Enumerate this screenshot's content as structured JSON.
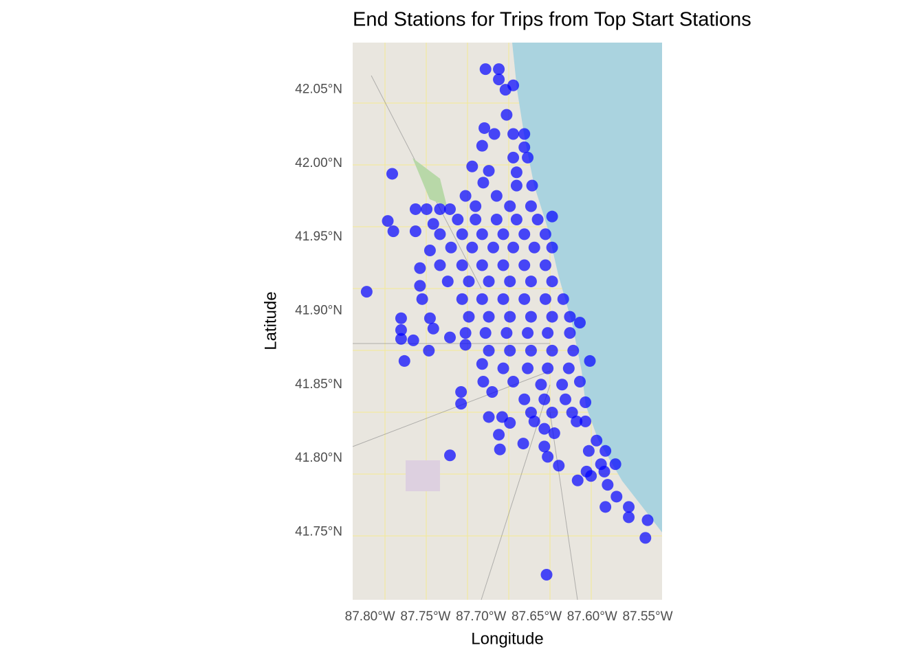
{
  "chart_data": {
    "type": "scatter",
    "title": "End Stations for Trips from Top Start Stations",
    "x_label": "Longitude",
    "y_label": "Latitude",
    "color": "#0000ff",
    "grid": false,
    "xlim": [
      -87.8156,
      -87.537
    ],
    "ylim": [
      41.704,
      42.082
    ],
    "xticks": [
      {
        "value": -87.8,
        "label": "87.80°W"
      },
      {
        "value": -87.75,
        "label": "87.75°W"
      },
      {
        "value": -87.7,
        "label": "87.70°W"
      },
      {
        "value": -87.65,
        "label": "87.65°W"
      },
      {
        "value": -87.6,
        "label": "87.60°W"
      },
      {
        "value": -87.55,
        "label": "87.55°W"
      }
    ],
    "yticks": [
      {
        "value": 41.75,
        "label": "41.75°N"
      },
      {
        "value": 41.8,
        "label": "41.80°N"
      },
      {
        "value": 41.85,
        "label": "41.85°N"
      },
      {
        "value": 41.9,
        "label": "41.90°N"
      },
      {
        "value": 41.95,
        "label": "41.95°N"
      },
      {
        "value": 42.0,
        "label": "42.00°N"
      },
      {
        "value": 42.05,
        "label": "42.05°N"
      }
    ],
    "x": [
      -87.696,
      -87.684,
      -87.684,
      -87.671,
      -87.678,
      -87.677,
      -87.697,
      -87.688,
      -87.671,
      -87.661,
      -87.699,
      -87.661,
      -87.671,
      -87.658,
      -87.708,
      -87.693,
      -87.78,
      -87.668,
      -87.698,
      -87.654,
      -87.668,
      -87.714,
      -87.686,
      -87.759,
      -87.749,
      -87.737,
      -87.728,
      -87.705,
      -87.674,
      -87.655,
      -87.636,
      -87.784,
      -87.779,
      -87.759,
      -87.743,
      -87.721,
      -87.705,
      -87.686,
      -87.668,
      -87.649,
      -87.737,
      -87.717,
      -87.699,
      -87.68,
      -87.661,
      -87.642,
      -87.746,
      -87.727,
      -87.708,
      -87.689,
      -87.671,
      -87.652,
      -87.636,
      -87.737,
      -87.717,
      -87.699,
      -87.68,
      -87.661,
      -87.642,
      -87.755,
      -87.73,
      -87.711,
      -87.693,
      -87.674,
      -87.655,
      -87.636,
      -87.755,
      -87.803,
      -87.753,
      -87.717,
      -87.699,
      -87.68,
      -87.661,
      -87.642,
      -87.626,
      -87.746,
      -87.711,
      -87.693,
      -87.674,
      -87.655,
      -87.636,
      -87.62,
      -87.611,
      -87.772,
      -87.772,
      -87.772,
      -87.761,
      -87.743,
      -87.728,
      -87.714,
      -87.696,
      -87.677,
      -87.658,
      -87.64,
      -87.62,
      -87.747,
      -87.714,
      -87.693,
      -87.674,
      -87.655,
      -87.636,
      -87.617,
      -87.769,
      -87.699,
      -87.68,
      -87.658,
      -87.64,
      -87.621,
      -87.602,
      -87.698,
      -87.671,
      -87.646,
      -87.627,
      -87.611,
      -87.718,
      -87.718,
      -87.69,
      -87.661,
      -87.643,
      -87.624,
      -87.606,
      -87.693,
      -87.681,
      -87.655,
      -87.636,
      -87.618,
      -87.674,
      -87.652,
      -87.643,
      -87.634,
      -87.614,
      -87.606,
      -87.684,
      -87.596,
      -87.683,
      -87.662,
      -87.643,
      -87.603,
      -87.588,
      -87.728,
      -87.64,
      -87.592,
      -87.579,
      -87.63,
      -87.605,
      -87.589,
      -87.613,
      -87.601,
      -87.586,
      -87.578,
      -87.588,
      -87.567,
      -87.567,
      -87.55,
      -87.552,
      -87.641
    ],
    "values": [
      42.064,
      42.064,
      42.057,
      42.053,
      42.05,
      42.033,
      42.024,
      42.02,
      42.02,
      42.02,
      42.012,
      42.011,
      42.004,
      42.004,
      41.998,
      41.995,
      41.993,
      41.994,
      41.987,
      41.985,
      41.985,
      41.978,
      41.978,
      41.969,
      41.969,
      41.969,
      41.969,
      41.971,
      41.971,
      41.971,
      41.964,
      41.961,
      41.954,
      41.954,
      41.959,
      41.962,
      41.962,
      41.962,
      41.962,
      41.962,
      41.952,
      41.952,
      41.952,
      41.952,
      41.952,
      41.952,
      41.941,
      41.943,
      41.943,
      41.943,
      41.943,
      41.943,
      41.943,
      41.931,
      41.931,
      41.931,
      41.931,
      41.931,
      41.931,
      41.929,
      41.92,
      41.92,
      41.92,
      41.92,
      41.92,
      41.92,
      41.917,
      41.913,
      41.908,
      41.908,
      41.908,
      41.908,
      41.908,
      41.908,
      41.908,
      41.895,
      41.896,
      41.896,
      41.896,
      41.896,
      41.896,
      41.896,
      41.892,
      41.895,
      41.887,
      41.881,
      41.88,
      41.888,
      41.882,
      41.885,
      41.885,
      41.885,
      41.885,
      41.885,
      41.885,
      41.873,
      41.877,
      41.873,
      41.873,
      41.873,
      41.873,
      41.873,
      41.866,
      41.864,
      41.861,
      41.861,
      41.861,
      41.861,
      41.866,
      41.852,
      41.852,
      41.85,
      41.85,
      41.852,
      41.845,
      41.837,
      41.845,
      41.84,
      41.84,
      41.84,
      41.838,
      41.828,
      41.828,
      41.831,
      41.831,
      41.831,
      41.824,
      41.825,
      41.82,
      41.817,
      41.825,
      41.825,
      41.816,
      41.812,
      41.806,
      41.81,
      41.808,
      41.805,
      41.805,
      41.802,
      41.801,
      41.796,
      41.796,
      41.795,
      41.791,
      41.791,
      41.785,
      41.788,
      41.782,
      41.774,
      41.767,
      41.767,
      41.76,
      41.758,
      41.746,
      41.721
    ]
  }
}
